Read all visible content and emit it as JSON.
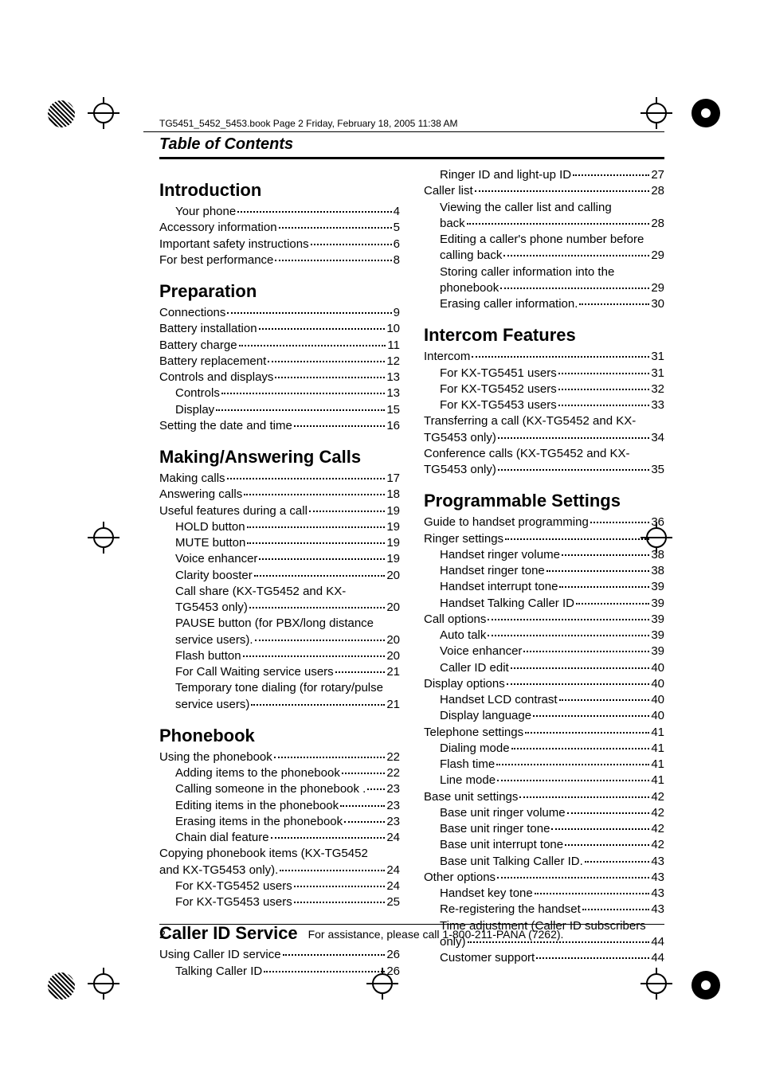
{
  "header_line": "TG5451_5452_5453.book  Page 2  Friday, February 18, 2005  11:38 AM",
  "section_title": "Table of Contents",
  "page_number": "2",
  "assistance_text": "For assistance, please call 1-800-211-PANA (7262).",
  "left": [
    {
      "type": "chapter",
      "text": "Introduction"
    },
    {
      "type": "entry",
      "indent": 1,
      "label": "Your phone",
      "page": "4"
    },
    {
      "type": "entry",
      "indent": 0,
      "label": "Accessory information",
      "page": "5"
    },
    {
      "type": "entry",
      "indent": 0,
      "label": "Important safety instructions",
      "page": "6"
    },
    {
      "type": "entry",
      "indent": 0,
      "label": "For best performance",
      "page": "8"
    },
    {
      "type": "chapter",
      "text": "Preparation"
    },
    {
      "type": "entry",
      "indent": 0,
      "label": "Connections",
      "page": "9"
    },
    {
      "type": "entry",
      "indent": 0,
      "label": "Battery installation",
      "page": "10"
    },
    {
      "type": "entry",
      "indent": 0,
      "label": "Battery charge",
      "page": "11"
    },
    {
      "type": "entry",
      "indent": 0,
      "label": "Battery replacement",
      "page": "12"
    },
    {
      "type": "entry",
      "indent": 0,
      "label": "Controls and displays",
      "page": "13"
    },
    {
      "type": "entry",
      "indent": 1,
      "label": "Controls",
      "page": "13"
    },
    {
      "type": "entry",
      "indent": 1,
      "label": "Display",
      "page": "15"
    },
    {
      "type": "entry",
      "indent": 0,
      "label": "Setting the date and time",
      "page": "16"
    },
    {
      "type": "chapter",
      "text": "Making/Answering Calls"
    },
    {
      "type": "entry",
      "indent": 0,
      "label": "Making calls",
      "page": "17"
    },
    {
      "type": "entry",
      "indent": 0,
      "label": "Answering calls",
      "page": "18"
    },
    {
      "type": "entry",
      "indent": 0,
      "label": "Useful features during a call",
      "page": "19"
    },
    {
      "type": "entry",
      "indent": 1,
      "label": "HOLD button",
      "page": "19"
    },
    {
      "type": "entry",
      "indent": 1,
      "label": "MUTE button",
      "page": "19"
    },
    {
      "type": "entry",
      "indent": 1,
      "label": "Voice enhancer",
      "page": "19"
    },
    {
      "type": "entry",
      "indent": 1,
      "label": "Clarity booster",
      "page": "20"
    },
    {
      "type": "wrap",
      "indent": 1,
      "text": "Call share (KX-TG5452 and KX-"
    },
    {
      "type": "entry",
      "indent": 1,
      "label": "TG5453 only)",
      "page": "20"
    },
    {
      "type": "wrap",
      "indent": 1,
      "text": "PAUSE button (for PBX/long distance"
    },
    {
      "type": "entry",
      "indent": 1,
      "label": "service users).",
      "page": "20"
    },
    {
      "type": "entry",
      "indent": 1,
      "label": "Flash button",
      "page": "20"
    },
    {
      "type": "entry",
      "indent": 1,
      "label": "For Call Waiting service users",
      "page": "21"
    },
    {
      "type": "wrap",
      "indent": 1,
      "text": "Temporary tone dialing (for rotary/pulse"
    },
    {
      "type": "entry",
      "indent": 1,
      "label": "service users)",
      "page": "21"
    },
    {
      "type": "chapter",
      "text": "Phonebook"
    },
    {
      "type": "entry",
      "indent": 0,
      "label": "Using the phonebook",
      "page": "22"
    },
    {
      "type": "entry",
      "indent": 1,
      "label": "Adding items to the phonebook",
      "page": "22"
    },
    {
      "type": "entry",
      "indent": 1,
      "label": "Calling someone in the phonebook .",
      "page": "23"
    },
    {
      "type": "entry",
      "indent": 1,
      "label": "Editing items in the phonebook",
      "page": "23"
    },
    {
      "type": "entry",
      "indent": 1,
      "label": "Erasing items in the phonebook",
      "page": "23"
    },
    {
      "type": "entry",
      "indent": 1,
      "label": "Chain dial feature",
      "page": "24"
    },
    {
      "type": "wrap",
      "indent": 0,
      "text": "Copying phonebook items (KX-TG5452"
    },
    {
      "type": "entry",
      "indent": 0,
      "label": "and KX-TG5453 only).",
      "page": "24"
    },
    {
      "type": "entry",
      "indent": 1,
      "label": "For KX-TG5452 users",
      "page": "24"
    },
    {
      "type": "entry",
      "indent": 1,
      "label": "For KX-TG5453 users",
      "page": "25"
    },
    {
      "type": "chapter",
      "text": "Caller ID Service"
    },
    {
      "type": "entry",
      "indent": 0,
      "label": "Using Caller ID service",
      "page": "26"
    },
    {
      "type": "entry",
      "indent": 1,
      "label": "Talking Caller ID",
      "page": "26"
    }
  ],
  "right": [
    {
      "type": "entry",
      "indent": 1,
      "label": "Ringer ID and light-up ID",
      "page": "27"
    },
    {
      "type": "entry",
      "indent": 0,
      "label": "Caller list",
      "page": "28"
    },
    {
      "type": "wrap",
      "indent": 1,
      "text": "Viewing the caller list and calling"
    },
    {
      "type": "entry",
      "indent": 1,
      "label": "back",
      "page": "28"
    },
    {
      "type": "wrap",
      "indent": 1,
      "text": "Editing a caller's phone number before"
    },
    {
      "type": "entry",
      "indent": 1,
      "label": "calling back",
      "page": "29"
    },
    {
      "type": "wrap",
      "indent": 1,
      "text": "Storing caller information into the"
    },
    {
      "type": "entry",
      "indent": 1,
      "label": "phonebook",
      "page": "29"
    },
    {
      "type": "entry",
      "indent": 1,
      "label": "Erasing caller information.",
      "page": "30"
    },
    {
      "type": "chapter",
      "text": "Intercom Features"
    },
    {
      "type": "entry",
      "indent": 0,
      "label": "Intercom",
      "page": "31"
    },
    {
      "type": "entry",
      "indent": 1,
      "label": "For KX-TG5451 users",
      "page": "31"
    },
    {
      "type": "entry",
      "indent": 1,
      "label": "For KX-TG5452 users",
      "page": "32"
    },
    {
      "type": "entry",
      "indent": 1,
      "label": "For KX-TG5453 users",
      "page": "33"
    },
    {
      "type": "wrap",
      "indent": 0,
      "text": "Transferring a call (KX-TG5452 and KX-"
    },
    {
      "type": "entry",
      "indent": 0,
      "label": "TG5453 only)",
      "page": "34"
    },
    {
      "type": "wrap",
      "indent": 0,
      "text": "Conference calls (KX-TG5452 and KX-"
    },
    {
      "type": "entry",
      "indent": 0,
      "label": "TG5453 only)",
      "page": "35"
    },
    {
      "type": "chapter",
      "text": "Programmable Settings"
    },
    {
      "type": "entry",
      "indent": 0,
      "label": "Guide to handset programming",
      "page": "36"
    },
    {
      "type": "entry",
      "indent": 0,
      "label": "Ringer settings",
      "page": "38"
    },
    {
      "type": "entry",
      "indent": 1,
      "label": "Handset ringer volume",
      "page": "38"
    },
    {
      "type": "entry",
      "indent": 1,
      "label": "Handset ringer tone",
      "page": "38"
    },
    {
      "type": "entry",
      "indent": 1,
      "label": "Handset interrupt tone",
      "page": "39"
    },
    {
      "type": "entry",
      "indent": 1,
      "label": "Handset Talking Caller ID",
      "page": "39"
    },
    {
      "type": "entry",
      "indent": 0,
      "label": "Call options",
      "page": "39"
    },
    {
      "type": "entry",
      "indent": 1,
      "label": "Auto talk",
      "page": "39"
    },
    {
      "type": "entry",
      "indent": 1,
      "label": "Voice enhancer",
      "page": "39"
    },
    {
      "type": "entry",
      "indent": 1,
      "label": "Caller ID edit",
      "page": "40"
    },
    {
      "type": "entry",
      "indent": 0,
      "label": "Display options",
      "page": "40"
    },
    {
      "type": "entry",
      "indent": 1,
      "label": "Handset LCD contrast",
      "page": "40"
    },
    {
      "type": "entry",
      "indent": 1,
      "label": "Display language",
      "page": "40"
    },
    {
      "type": "entry",
      "indent": 0,
      "label": "Telephone settings",
      "page": "41"
    },
    {
      "type": "entry",
      "indent": 1,
      "label": "Dialing mode",
      "page": "41"
    },
    {
      "type": "entry",
      "indent": 1,
      "label": "Flash time",
      "page": "41"
    },
    {
      "type": "entry",
      "indent": 1,
      "label": "Line mode",
      "page": "41"
    },
    {
      "type": "entry",
      "indent": 0,
      "label": "Base unit settings",
      "page": "42"
    },
    {
      "type": "entry",
      "indent": 1,
      "label": "Base unit ringer volume",
      "page": "42"
    },
    {
      "type": "entry",
      "indent": 1,
      "label": "Base unit ringer tone",
      "page": "42"
    },
    {
      "type": "entry",
      "indent": 1,
      "label": "Base unit interrupt tone",
      "page": "42"
    },
    {
      "type": "entry",
      "indent": 1,
      "label": "Base unit Talking Caller ID.",
      "page": "43"
    },
    {
      "type": "entry",
      "indent": 0,
      "label": "Other options",
      "page": "43"
    },
    {
      "type": "entry",
      "indent": 1,
      "label": "Handset key tone",
      "page": "43"
    },
    {
      "type": "entry",
      "indent": 1,
      "label": "Re-registering the handset",
      "page": "43"
    },
    {
      "type": "wrap",
      "indent": 1,
      "text": "Time adjustment (Caller ID subscribers"
    },
    {
      "type": "entry",
      "indent": 1,
      "label": "only)",
      "page": "44"
    },
    {
      "type": "entry",
      "indent": 1,
      "label": "Customer support",
      "page": "44"
    }
  ]
}
